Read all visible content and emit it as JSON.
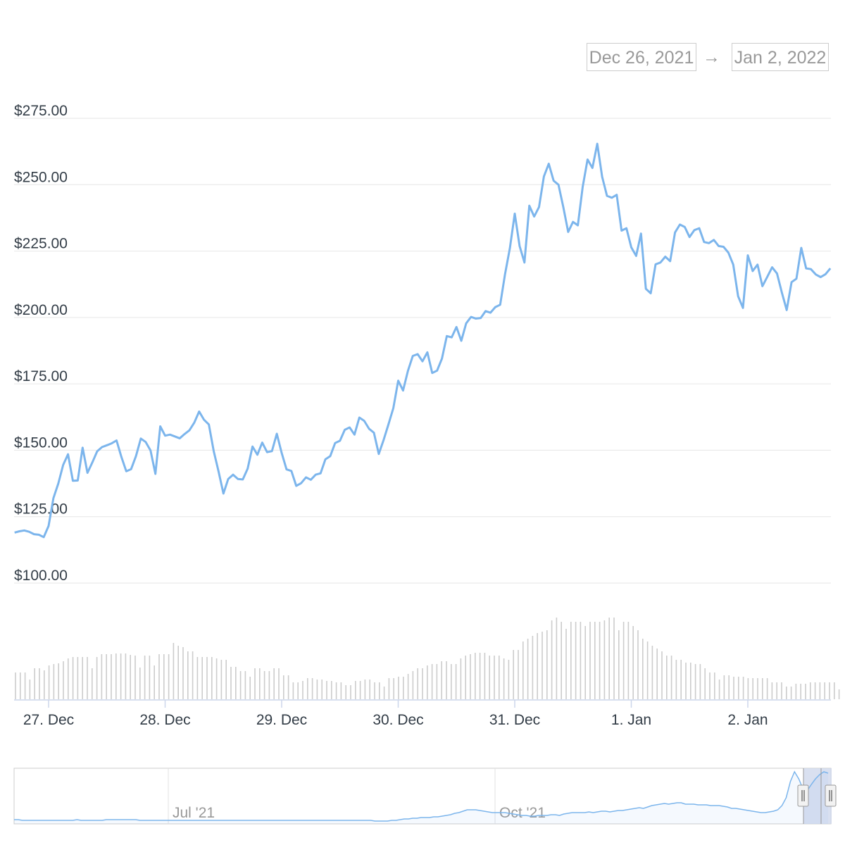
{
  "range": {
    "from": "Dec 26, 2021",
    "arrow": "→",
    "to": "Jan 2, 2022"
  },
  "colors": {
    "line": "#7cb5ec",
    "grid": "#e6e6e6",
    "volume": "#cccccc",
    "navigator_mask": "#cfd8ec"
  },
  "chart_data": {
    "type": "line",
    "title": "",
    "ylim": [
      100,
      275
    ],
    "y_ticks": [
      "$100.00",
      "$125.00",
      "$150.00",
      "$175.00",
      "$200.00",
      "$225.00",
      "$250.00",
      "$275.00"
    ],
    "x_ticks": [
      "27. Dec",
      "28. Dec",
      "29. Dec",
      "30. Dec",
      "31. Dec",
      "1. Jan",
      "2. Jan"
    ],
    "grid": true,
    "series": [
      {
        "x_start_hours_before_dec27": 7.0,
        "step_hours": 1,
        "values": [
          119.0,
          119.5,
          119.8,
          119.3,
          118.4,
          118.2,
          117.3,
          121.5,
          132.0,
          137.5,
          144.5,
          148.5,
          138.5,
          138.6,
          151.0,
          141.5,
          145.4,
          149.6,
          151.2,
          151.9,
          152.6,
          153.7,
          147.5,
          142.1,
          142.9,
          147.8,
          154.4,
          153.1,
          149.9,
          141.1,
          159.0,
          155.5,
          155.9,
          155.2,
          154.5,
          156.1,
          157.5,
          160.4,
          164.6,
          161.5,
          159.7,
          149.7,
          142.0,
          133.7,
          139.2,
          140.8,
          139.2,
          139.0,
          143.1,
          151.4,
          148.3,
          152.9,
          149.3,
          149.7,
          156.2,
          149.0,
          142.8,
          142.2,
          136.6,
          137.6,
          139.8,
          138.9,
          140.8,
          141.3,
          146.6,
          147.8,
          152.7,
          153.6,
          157.7,
          158.6,
          155.9,
          162.3,
          161.1,
          158.1,
          156.6,
          148.6,
          153.9,
          159.8,
          165.9,
          176.2,
          172.5,
          179.9,
          185.5,
          186.2,
          183.5,
          186.9,
          179.1,
          180.0,
          184.5,
          193.0,
          192.5,
          196.4,
          191.2,
          197.8,
          200.2,
          199.6,
          199.8,
          202.4,
          201.8,
          203.9,
          204.8,
          216.3,
          226.1,
          239.1,
          226.9,
          220.7,
          242.1,
          238.0,
          241.6,
          253.1,
          257.9,
          251.5,
          250.0,
          241.5,
          232.2,
          236.0,
          234.7,
          249.2,
          259.5,
          256.3,
          265.4,
          253.0,
          245.8,
          245.1,
          246.2,
          232.7,
          233.6,
          226.4,
          223.2,
          231.6,
          210.8,
          209.1,
          220.0,
          220.7,
          222.9,
          221.2,
          232.0,
          235.0,
          234.1,
          230.3,
          232.9,
          233.6,
          228.4,
          228.0,
          229.2,
          226.9,
          226.6,
          224.4,
          219.9,
          208.0,
          203.6,
          223.4,
          217.5,
          219.9,
          211.8,
          215.3,
          218.9,
          216.6,
          209.4,
          202.8,
          213.3,
          214.6,
          226.2,
          218.5,
          218.2,
          216.2,
          215.2,
          216.3,
          218.5
        ]
      }
    ],
    "volume": {
      "values": [
        38,
        38,
        38,
        28,
        44,
        44,
        41,
        48,
        50,
        51,
        54,
        58,
        60,
        60,
        60,
        60,
        44,
        60,
        64,
        64,
        64,
        65,
        65,
        65,
        63,
        62,
        45,
        62,
        62,
        48,
        64,
        64,
        64,
        80,
        76,
        74,
        68,
        68,
        60,
        60,
        60,
        60,
        58,
        56,
        56,
        46,
        46,
        40,
        40,
        32,
        44,
        44,
        40,
        40,
        44,
        44,
        34,
        34,
        24,
        24,
        26,
        30,
        30,
        28,
        28,
        26,
        26,
        24,
        24,
        20,
        20,
        26,
        26,
        28,
        28,
        24,
        24,
        18,
        30,
        30,
        32,
        32,
        36,
        40,
        44,
        44,
        48,
        50,
        50,
        54,
        54,
        50,
        50,
        58,
        62,
        64,
        66,
        66,
        66,
        62,
        62,
        62,
        58,
        56,
        70,
        70,
        82,
        86,
        90,
        94,
        96,
        98,
        112,
        116,
        110,
        100,
        110,
        110,
        110,
        104,
        110,
        110,
        110,
        112,
        116,
        116,
        98,
        110,
        110,
        104,
        98,
        86,
        82,
        76,
        72,
        68,
        62,
        62,
        56,
        56,
        52,
        52,
        50,
        50,
        44,
        38,
        38,
        28,
        34,
        34,
        32,
        32,
        32,
        30,
        30,
        30,
        30,
        30,
        24,
        24,
        24,
        18,
        18,
        22,
        22,
        22,
        24,
        24,
        24,
        24,
        24,
        24,
        14
      ]
    },
    "navigator": {
      "labels": [
        "Jul '21",
        "Oct '21"
      ],
      "values": [
        4,
        4,
        3,
        3,
        3,
        3,
        3,
        3,
        3,
        3,
        3,
        3,
        3,
        3,
        3,
        4,
        3,
        3,
        3,
        3,
        3,
        3,
        4,
        4,
        4,
        4,
        4,
        4,
        4,
        4,
        3,
        3,
        3,
        3,
        3,
        3,
        3,
        3,
        3,
        3,
        3,
        3,
        3,
        3,
        3,
        3,
        3,
        3,
        3,
        3,
        3,
        3,
        3,
        3,
        3,
        3,
        3,
        3,
        3,
        3,
        3,
        3,
        3,
        3,
        3,
        3,
        3,
        3,
        3,
        3,
        3,
        3,
        3,
        3,
        3,
        3,
        3,
        3,
        3,
        3,
        3,
        3,
        3,
        3,
        3,
        3,
        2,
        2,
        2,
        2,
        3,
        3,
        4,
        5,
        5,
        6,
        6,
        7,
        7,
        7,
        8,
        8,
        9,
        10,
        11,
        13,
        14,
        16,
        18,
        18,
        18,
        17,
        16,
        15,
        14,
        14,
        14,
        14,
        13,
        12,
        11,
        10,
        10,
        9,
        9,
        10,
        10,
        10,
        11,
        11,
        10,
        12,
        13,
        14,
        14,
        14,
        14,
        15,
        14,
        15,
        16,
        16,
        15,
        16,
        17,
        17,
        18,
        19,
        20,
        21,
        20,
        22,
        24,
        25,
        26,
        27,
        26,
        27,
        28,
        28,
        26,
        26,
        26,
        25,
        25,
        25,
        24,
        24,
        24,
        23,
        22,
        20,
        20,
        19,
        18,
        17,
        16,
        15,
        14,
        14,
        15,
        16,
        18,
        24,
        35,
        58,
        72,
        62,
        48,
        45,
        54,
        62,
        68,
        72,
        70
      ]
    }
  }
}
